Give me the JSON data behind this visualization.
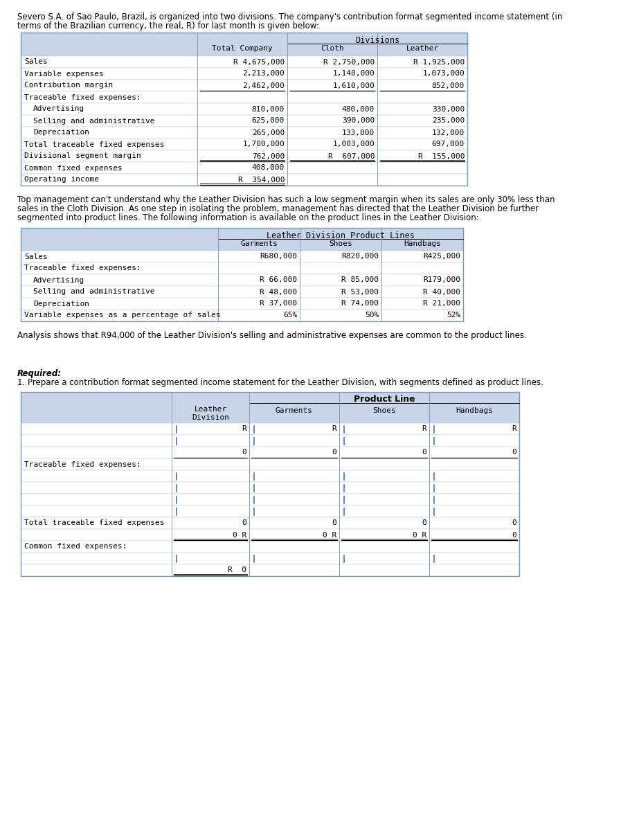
{
  "page_bg": "#ffffff",
  "header_bg": "#c8d4e8",
  "border_color": "#7a9cc0",
  "grid_color": "#b0c0d8",
  "intro_line1": "Severo S.A. of Sao Paulo, Brazil, is organized into two divisions. The company's contribution format segmented income statement (in",
  "intro_line2": "terms of the Brazilian currency, the real, R) for last month is given below:",
  "t1_div_label": "Divisions",
  "t1_col_headers": [
    "Total Company",
    "Cloth",
    "Leather"
  ],
  "t1_rows": [
    {
      "label": "Sales",
      "ind": 0,
      "vals": [
        "R 4,675,000",
        "R 2,750,000",
        "R 1,925,000"
      ],
      "ul": 0
    },
    {
      "label": "Variable expenses",
      "ind": 0,
      "vals": [
        "2,213,000",
        "1,140,000",
        "1,073,000"
      ],
      "ul": 0
    },
    {
      "label": "Contribution margin",
      "ind": 0,
      "vals": [
        "2,462,000",
        "1,610,000",
        "852,000"
      ],
      "ul": 1
    },
    {
      "label": "Traceable fixed expenses:",
      "ind": 0,
      "vals": [
        "",
        "",
        ""
      ],
      "ul": 0
    },
    {
      "label": "Advertising",
      "ind": 1,
      "vals": [
        "810,000",
        "480,000",
        "330,000"
      ],
      "ul": 0
    },
    {
      "label": "Selling and administrative",
      "ind": 1,
      "vals": [
        "625,000",
        "390,000",
        "235,000"
      ],
      "ul": 0
    },
    {
      "label": "Depreciation",
      "ind": 1,
      "vals": [
        "265,000",
        "133,000",
        "132,000"
      ],
      "ul": 0
    },
    {
      "label": "Total traceable fixed expenses",
      "ind": 0,
      "vals": [
        "1,700,000",
        "1,003,000",
        "697,000"
      ],
      "ul": 0
    },
    {
      "label": "Divisional segment margin",
      "ind": 0,
      "vals": [
        "762,000",
        "R  607,000",
        "R  155,000"
      ],
      "ul": 2
    },
    {
      "label": "Common fixed expenses",
      "ind": 0,
      "vals": [
        "408,000",
        "",
        ""
      ],
      "ul": 0
    },
    {
      "label": "Operating income",
      "ind": 0,
      "vals": [
        "R  354,000",
        "",
        ""
      ],
      "ul": 2
    }
  ],
  "mid_line1": "Top management can't understand why the Leather Division has such a low segment margin when its sales are only 30% less than",
  "mid_line2": "sales in the Cloth Division. As one step in isolating the problem, management has directed that the Leather Division be further",
  "mid_line3": "segmented into product lines. The following information is available on the product lines in the Leather Division:",
  "t2_div_label": "Leather Division Product Lines",
  "t2_col_headers": [
    "Garments",
    "Shoes",
    "Handbags"
  ],
  "t2_rows": [
    {
      "label": "Sales",
      "ind": 0,
      "vals": [
        "R680,000",
        "R820,000",
        "R425,000"
      ]
    },
    {
      "label": "Traceable fixed expenses:",
      "ind": 0,
      "vals": [
        "",
        "",
        ""
      ]
    },
    {
      "label": "Advertising",
      "ind": 1,
      "vals": [
        "R 66,000",
        "R 85,000",
        "R179,000"
      ]
    },
    {
      "label": "Selling and administrative",
      "ind": 1,
      "vals": [
        "R 48,000",
        "R 53,000",
        "R 40,000"
      ]
    },
    {
      "label": "Depreciation",
      "ind": 1,
      "vals": [
        "R 37,000",
        "R 74,000",
        "R 21,000"
      ]
    },
    {
      "label": "Variable expenses as a percentage of sales",
      "ind": 0,
      "vals": [
        "65%",
        "50%",
        "52%"
      ]
    }
  ],
  "analysis_text": "Analysis shows that R94,000 of the Leather Division's selling and administrative expenses are common to the product lines.",
  "req_bold": "Required:",
  "req_text": "1. Prepare a contribution format segmented income statement for the Leather Division, with segments defined as product lines.",
  "t3_pl_label": "Product Line",
  "t3_col_headers": [
    "Leather\nDivision",
    "Garments",
    "Shoes",
    "Handbags"
  ],
  "t3_rows": [
    {
      "label": "",
      "ind": 0,
      "vals": [
        "R",
        "R",
        "R",
        "R"
      ],
      "ul": 0,
      "input": true
    },
    {
      "label": "",
      "ind": 0,
      "vals": [
        "",
        "",
        "",
        ""
      ],
      "ul": 0,
      "input": true
    },
    {
      "label": "",
      "ind": 0,
      "vals": [
        "0",
        "0",
        "0",
        "0"
      ],
      "ul": 1,
      "input": false
    },
    {
      "label": "Traceable fixed expenses:",
      "ind": 0,
      "vals": [
        "",
        "",
        "",
        ""
      ],
      "ul": 0,
      "input": false
    },
    {
      "label": "",
      "ind": 1,
      "vals": [
        "",
        "",
        "",
        ""
      ],
      "ul": 0,
      "input": true
    },
    {
      "label": "",
      "ind": 1,
      "vals": [
        "",
        "",
        "",
        ""
      ],
      "ul": 0,
      "input": true
    },
    {
      "label": "",
      "ind": 1,
      "vals": [
        "",
        "",
        "",
        ""
      ],
      "ul": 0,
      "input": true
    },
    {
      "label": "",
      "ind": 1,
      "vals": [
        "",
        "",
        "",
        ""
      ],
      "ul": 0,
      "input": true
    },
    {
      "label": "Total traceable fixed expenses",
      "ind": 0,
      "vals": [
        "0",
        "0",
        "0",
        "0"
      ],
      "ul": 0,
      "input": false
    },
    {
      "label": "",
      "ind": 0,
      "vals": [
        "0 R",
        "0 R",
        "0 R",
        "0"
      ],
      "ul": 2,
      "input": false
    },
    {
      "label": "Common fixed expenses:",
      "ind": 0,
      "vals": [
        "",
        "",
        "",
        ""
      ],
      "ul": 0,
      "input": false
    },
    {
      "label": "",
      "ind": 1,
      "vals": [
        "",
        "",
        "",
        ""
      ],
      "ul": 0,
      "input": true
    },
    {
      "label": "",
      "ind": 0,
      "vals": [
        "R  0",
        "",
        "",
        ""
      ],
      "ul": 2,
      "input": false
    }
  ]
}
